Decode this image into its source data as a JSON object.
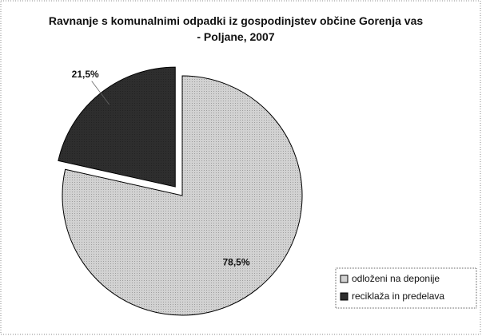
{
  "chart_data": {
    "type": "pie",
    "title": "Ravnanje s komunalnimi odpadki iz  gospodinjstev občine Gorenja vas - Poljane, 2007",
    "categories": [
      "odloženi na deponije",
      "reciklaža in predelava"
    ],
    "values": [
      78.5,
      21.5
    ],
    "value_labels": [
      "78,5%",
      "21,5%"
    ],
    "colors": [
      "#d2d2d2",
      "#2e2e2e"
    ],
    "exploded": [
      false,
      true
    ],
    "legend": "bottom-right"
  }
}
